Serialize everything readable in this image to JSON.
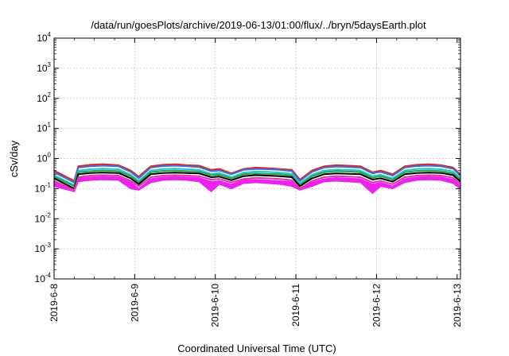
{
  "chart_data": {
    "type": "line",
    "title": "/data/run/goesPlots/archive/2019-06-13/01:00/flux/../bryn/5daysEarth.plot",
    "xlabel": "Coordinated Universal Time (UTC)",
    "ylabel": "cSv/day",
    "yscale": "log",
    "ylim": [
      0.0001,
      10000
    ],
    "xlim": [
      "2019-06-08",
      "2019-06-13 01:00"
    ],
    "grid": true,
    "legend": "none",
    "y_ticks": [
      {
        "base": "10",
        "exp": "-4"
      },
      {
        "base": "10",
        "exp": "-3"
      },
      {
        "base": "10",
        "exp": "-2"
      },
      {
        "base": "10",
        "exp": "-1"
      },
      {
        "base": "10",
        "exp": "0"
      },
      {
        "base": "10",
        "exp": "1"
      },
      {
        "base": "10",
        "exp": "2"
      },
      {
        "base": "10",
        "exp": "3"
      },
      {
        "base": "10",
        "exp": "4"
      }
    ],
    "x_ticks": [
      "2019-6-8",
      "2019-6-9",
      "2019-6-10",
      "2019-6-11",
      "2019-6-12",
      "2019-6-13"
    ],
    "x_days": [
      0,
      0.25,
      0.3,
      0.45,
      0.6,
      0.8,
      0.95,
      1.05,
      1.2,
      1.35,
      1.5,
      1.65,
      1.8,
      1.95,
      2.05,
      2.2,
      2.35,
      2.5,
      2.65,
      2.8,
      2.95,
      3.05,
      3.2,
      3.35,
      3.5,
      3.65,
      3.8,
      3.95,
      4.05,
      4.2,
      4.35,
      4.5,
      4.65,
      4.8,
      4.95,
      5.04
    ],
    "series": [
      {
        "color": "#e0241b",
        "values": [
          0.4,
          0.18,
          0.55,
          0.62,
          0.65,
          0.6,
          0.4,
          0.25,
          0.55,
          0.62,
          0.65,
          0.6,
          0.58,
          0.42,
          0.45,
          0.32,
          0.45,
          0.5,
          0.48,
          0.45,
          0.42,
          0.2,
          0.4,
          0.55,
          0.6,
          0.58,
          0.55,
          0.35,
          0.4,
          0.3,
          0.55,
          0.62,
          0.65,
          0.6,
          0.5,
          0.3
        ]
      },
      {
        "color": "#3d6fd4",
        "values": [
          0.35,
          0.16,
          0.5,
          0.55,
          0.58,
          0.55,
          0.36,
          0.22,
          0.5,
          0.56,
          0.58,
          0.55,
          0.52,
          0.38,
          0.4,
          0.3,
          0.42,
          0.45,
          0.44,
          0.42,
          0.38,
          0.18,
          0.36,
          0.5,
          0.54,
          0.52,
          0.5,
          0.32,
          0.36,
          0.27,
          0.5,
          0.56,
          0.58,
          0.55,
          0.46,
          0.27
        ]
      },
      {
        "color": "#22c8d0",
        "values": [
          0.28,
          0.13,
          0.4,
          0.44,
          0.46,
          0.44,
          0.29,
          0.18,
          0.4,
          0.45,
          0.46,
          0.44,
          0.42,
          0.31,
          0.33,
          0.24,
          0.34,
          0.37,
          0.36,
          0.34,
          0.31,
          0.15,
          0.29,
          0.4,
          0.43,
          0.42,
          0.4,
          0.26,
          0.29,
          0.22,
          0.4,
          0.45,
          0.46,
          0.44,
          0.37,
          0.22
        ]
      },
      {
        "color": "#2e9e4a",
        "values": [
          0.25,
          0.12,
          0.35,
          0.38,
          0.4,
          0.38,
          0.26,
          0.16,
          0.35,
          0.39,
          0.4,
          0.38,
          0.37,
          0.28,
          0.29,
          0.22,
          0.3,
          0.32,
          0.31,
          0.3,
          0.27,
          0.13,
          0.26,
          0.35,
          0.38,
          0.37,
          0.35,
          0.23,
          0.26,
          0.2,
          0.35,
          0.39,
          0.4,
          0.38,
          0.32,
          0.2
        ]
      },
      {
        "color": "#000000",
        "values": [
          0.22,
          0.1,
          0.3,
          0.33,
          0.34,
          0.33,
          0.22,
          0.14,
          0.3,
          0.33,
          0.34,
          0.33,
          0.32,
          0.24,
          0.25,
          0.19,
          0.26,
          0.28,
          0.27,
          0.26,
          0.24,
          0.12,
          0.22,
          0.3,
          0.32,
          0.31,
          0.3,
          0.2,
          0.22,
          0.17,
          0.3,
          0.33,
          0.34,
          0.33,
          0.28,
          0.17
        ]
      },
      {
        "color": "#d63aa0",
        "values": [
          0.18,
          0.09,
          0.24,
          0.27,
          0.28,
          0.27,
          0.18,
          0.12,
          0.24,
          0.27,
          0.28,
          0.27,
          0.26,
          0.2,
          0.21,
          0.16,
          0.21,
          0.23,
          0.22,
          0.21,
          0.19,
          0.1,
          0.18,
          0.24,
          0.26,
          0.25,
          0.24,
          0.16,
          0.18,
          0.14,
          0.24,
          0.27,
          0.28,
          0.27,
          0.23,
          0.14
        ]
      }
    ],
    "filled_band": {
      "color": "#ee22ee",
      "upper": [
        0.16,
        0.08,
        0.22,
        0.24,
        0.25,
        0.24,
        0.16,
        0.1,
        0.21,
        0.24,
        0.25,
        0.24,
        0.23,
        0.17,
        0.18,
        0.14,
        0.19,
        0.2,
        0.19,
        0.18,
        0.17,
        0.09,
        0.16,
        0.21,
        0.23,
        0.22,
        0.21,
        0.14,
        0.16,
        0.12,
        0.21,
        0.24,
        0.25,
        0.24,
        0.2,
        0.12
      ],
      "lower": [
        0.12,
        0.08,
        0.17,
        0.19,
        0.2,
        0.19,
        0.1,
        0.09,
        0.16,
        0.19,
        0.2,
        0.19,
        0.17,
        0.08,
        0.14,
        0.1,
        0.15,
        0.16,
        0.15,
        0.14,
        0.12,
        0.09,
        0.12,
        0.17,
        0.18,
        0.17,
        0.16,
        0.07,
        0.12,
        0.1,
        0.16,
        0.19,
        0.2,
        0.19,
        0.15,
        0.1
      ]
    }
  }
}
